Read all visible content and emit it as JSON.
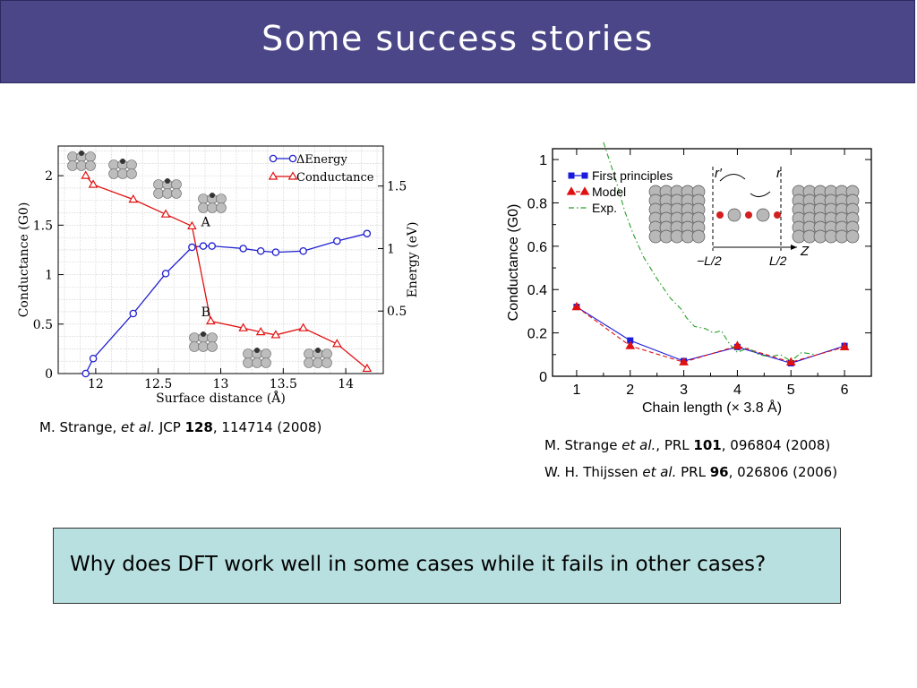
{
  "slide": {
    "title": "Some success stories",
    "question": "Why does DFT work well in some cases while it fails in other cases?"
  },
  "captions": {
    "left": {
      "author": "M. Strange, ",
      "etal": "et al.",
      "journal": " JCP ",
      "volume": "128",
      "rest": ", 114714 (2008)"
    },
    "right1": {
      "author": "M. Strange ",
      "etal": "et al.",
      "journal": ", PRL ",
      "volume": "101",
      "rest": ", 096804 (2008)"
    },
    "right2": {
      "author": "W. H. Thijssen ",
      "etal": "et al.",
      "journal": " PRL ",
      "volume": "96",
      "rest": ", 026806 (2006)"
    }
  },
  "chart_data": [
    {
      "type": "line",
      "xlabel": "Surface distance (Å)",
      "ylabel": "Conductance (G0)",
      "y2label": "Energy (eV)",
      "xlim": [
        11.7,
        14.3
      ],
      "ylim": [
        0,
        2.3
      ],
      "y2lim": [
        0,
        1.82
      ],
      "x_ticks": [
        12,
        12.5,
        13,
        13.5,
        14
      ],
      "x_tick_labels": [
        "12",
        "12.5",
        "13",
        "13.5",
        "14"
      ],
      "y_ticks": [
        0,
        0.5,
        1,
        1.5,
        2
      ],
      "y_tick_labels": [
        "0",
        "0.5",
        "1",
        "1.5",
        "2"
      ],
      "y2_ticks": [
        0.5,
        1,
        1.5
      ],
      "y2_tick_labels": [
        "0.5",
        "1",
        "1.5"
      ],
      "grid": true,
      "legend_position": "top-right",
      "annotations": [
        {
          "text": "A",
          "x": 12.8,
          "y": 1.49
        },
        {
          "text": "B",
          "x": 12.8,
          "y": 0.56
        }
      ],
      "series": [
        {
          "name": "ΔEnergy",
          "axis": "right",
          "color": "#1f1fd0",
          "marker": "circle",
          "x": [
            11.92,
            11.98,
            12.3,
            12.56,
            12.77,
            12.86,
            12.93,
            13.18,
            13.32,
            13.44,
            13.66,
            13.93,
            14.17
          ],
          "y": [
            0,
            0.12,
            0.48,
            0.8,
            1.01,
            1.02,
            1.02,
            1.0,
            0.98,
            0.97,
            0.98,
            1.06,
            1.12
          ]
        },
        {
          "name": "Conductance",
          "axis": "left",
          "color": "#e01010",
          "marker": "triangle",
          "x": [
            11.92,
            11.98,
            12.3,
            12.56,
            12.77,
            12.92,
            13.18,
            13.32,
            13.44,
            13.66,
            13.93,
            14.17
          ],
          "y": [
            2.0,
            1.91,
            1.76,
            1.61,
            1.49,
            0.53,
            0.46,
            0.42,
            0.39,
            0.46,
            0.3,
            0.05
          ]
        }
      ]
    },
    {
      "type": "line",
      "xlabel": "Chain length (× 3.8 Å)",
      "ylabel": "Conductance (G0)",
      "xlim": [
        0.55,
        6.5
      ],
      "ylim": [
        0,
        1.05
      ],
      "x_ticks": [
        1,
        2,
        3,
        4,
        5,
        6
      ],
      "x_tick_labels": [
        "1",
        "2",
        "3",
        "4",
        "5",
        "6"
      ],
      "y_ticks": [
        0,
        0.2,
        0.4,
        0.6,
        0.8,
        1
      ],
      "y_tick_labels": [
        "0",
        "0.2",
        "0.4",
        "0.6",
        "0.8",
        "1"
      ],
      "grid": false,
      "legend_position": "top-left",
      "inset_labels": {
        "r_prime": "r′",
        "r": "r",
        "minus_half": "−L/2",
        "half": "L/2",
        "z": "Z"
      },
      "series": [
        {
          "name": "First principles",
          "color": "#1a1adc",
          "marker": "square",
          "style": "solid",
          "x": [
            1,
            2,
            3,
            4,
            5,
            6
          ],
          "y": [
            0.32,
            0.165,
            0.07,
            0.135,
            0.06,
            0.14
          ]
        },
        {
          "name": "Model",
          "color": "#e01010",
          "marker": "triangle",
          "style": "dashed",
          "x": [
            1,
            2,
            3,
            4,
            5,
            6
          ],
          "y": [
            0.32,
            0.14,
            0.065,
            0.14,
            0.065,
            0.135
          ]
        },
        {
          "name": "Exp.",
          "color": "#2aa02a",
          "marker": "none",
          "style": "dashdot",
          "x": [
            1.5,
            1.62,
            1.75,
            1.9,
            2.05,
            2.25,
            2.5,
            2.75,
            2.95,
            3.05,
            3.2,
            3.4,
            3.55,
            3.7,
            3.85,
            4.0,
            4.2,
            4.4,
            4.6,
            4.8,
            5.0,
            5.2,
            5.45
          ],
          "y": [
            1.08,
            0.99,
            0.89,
            0.76,
            0.66,
            0.55,
            0.45,
            0.36,
            0.31,
            0.27,
            0.23,
            0.22,
            0.2,
            0.21,
            0.15,
            0.11,
            0.13,
            0.1,
            0.09,
            0.1,
            0.07,
            0.11,
            0.1
          ]
        }
      ]
    }
  ]
}
